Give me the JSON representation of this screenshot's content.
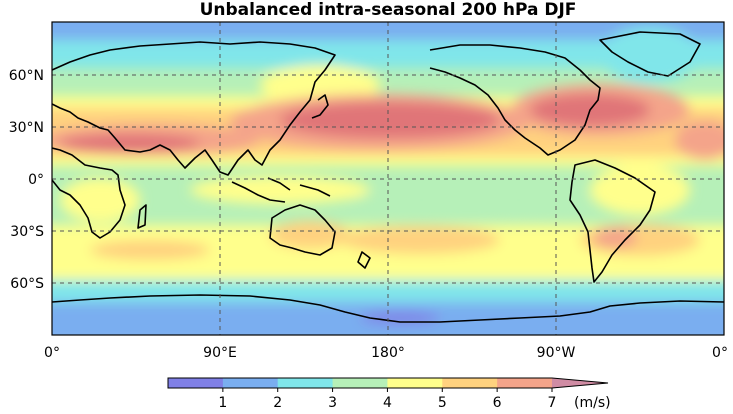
{
  "map": {
    "title": "Unbalanced intra-seasonal 200 hPa DJF",
    "projection": "PlateCarree",
    "lat_ticks": [
      "60°N",
      "30°N",
      "0°",
      "30°S",
      "60°S"
    ],
    "lon_ticks": [
      "0°",
      "90°E",
      "180°",
      "90°W",
      "0°"
    ],
    "gridlines": "dashed"
  },
  "colorbar": {
    "levels": [
      0,
      1,
      2,
      3,
      4,
      5,
      6,
      7
    ],
    "labels": [
      "1",
      "2",
      "3",
      "4",
      "5",
      "6",
      "7"
    ],
    "unit": "(m/s)",
    "extend": "max",
    "colors": [
      "#8080e6",
      "#7aaef0",
      "#80e6ea",
      "#b6f0b8",
      "#ffff8c",
      "#ffd27f",
      "#f4a48a",
      "#e07478",
      "#d08ca4"
    ]
  }
}
